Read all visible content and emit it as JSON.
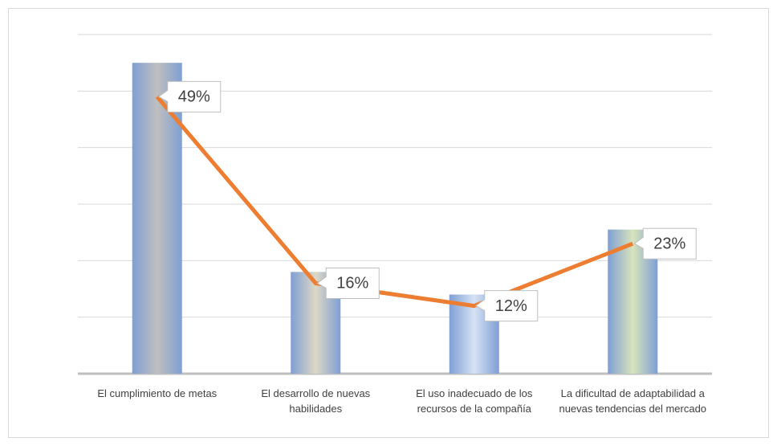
{
  "chart_data": {
    "type": "bar-line",
    "categories": [
      "El cumplimiento de metas",
      "El desarrollo de nuevas habilidades",
      "El uso inadecuado de los recursos de la compañía",
      "La dificultad de adaptabilidad a nuevas tendencias del mercado"
    ],
    "series": [
      {
        "type": "bar",
        "values": [
          55,
          18,
          14,
          25.5
        ],
        "colors": [
          "#bfbfbf",
          "#ddd8c4",
          "#d6e2f4",
          "#d8e4bc"
        ],
        "edge_color": "#7f9fd4"
      },
      {
        "type": "line",
        "values": [
          49,
          16,
          12,
          23
        ],
        "value_labels": [
          "49%",
          "16%",
          "12%",
          "23%"
        ],
        "color": "#ed7d31"
      }
    ],
    "ylim": [
      0,
      60
    ],
    "yticks": [
      0,
      10,
      20,
      30,
      40,
      50,
      60
    ],
    "grid": true
  }
}
